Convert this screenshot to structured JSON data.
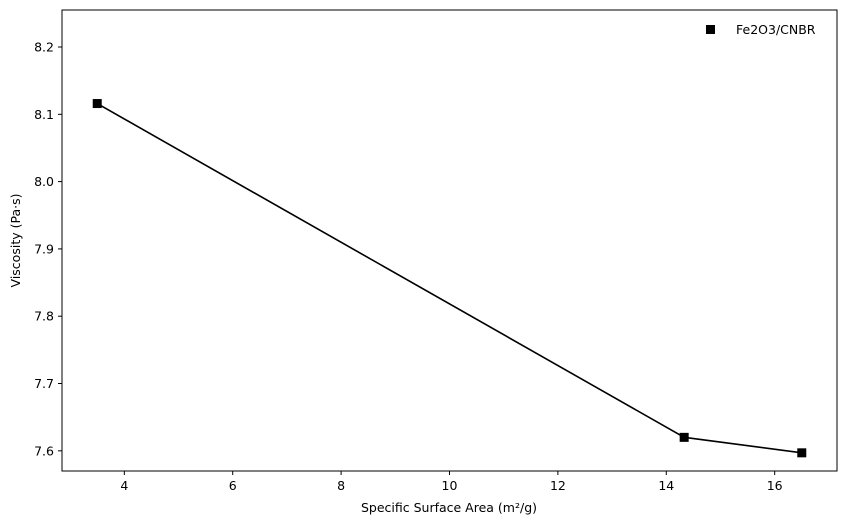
{
  "chart_data": {
    "type": "line",
    "xlabel": "Specific Surface Area (m²/g)",
    "ylabel": "Viscosity (Pa·s)",
    "xlim": [
      2.85,
      17.15
    ],
    "ylim": [
      7.57,
      8.255
    ],
    "xticks": [
      4,
      6,
      8,
      10,
      12,
      14,
      16
    ],
    "yticks": [
      7.6,
      7.7,
      7.8,
      7.9,
      8.0,
      8.1,
      8.2
    ],
    "xtick_labels": [
      "4",
      "6",
      "8",
      "10",
      "12",
      "14",
      "16"
    ],
    "ytick_labels": [
      "7.6",
      "7.7",
      "7.8",
      "7.9",
      "8.0",
      "8.1",
      "8.2"
    ],
    "legend_position": "top-right",
    "grid": false,
    "series": [
      {
        "name": "Fe2O3/CNBR",
        "color": "#000000",
        "marker": "square",
        "x": [
          3.5,
          14.33,
          16.5
        ],
        "y": [
          8.116,
          7.62,
          7.597
        ]
      }
    ]
  }
}
